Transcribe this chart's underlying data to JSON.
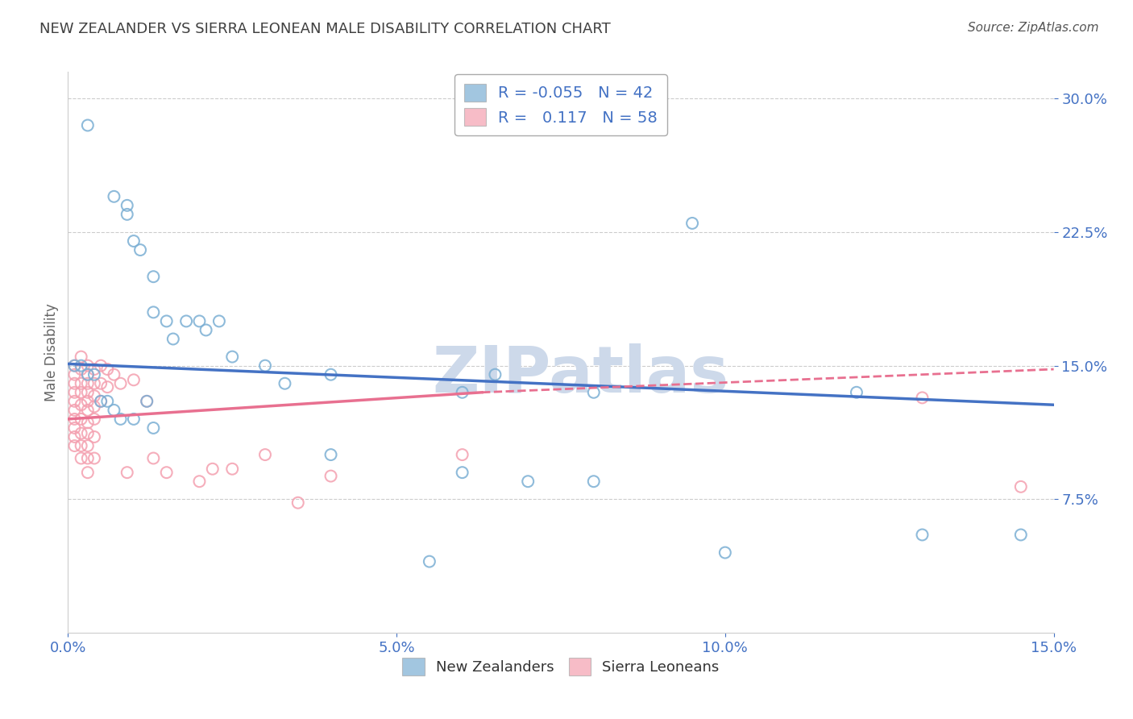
{
  "title": "NEW ZEALANDER VS SIERRA LEONEAN MALE DISABILITY CORRELATION CHART",
  "source": "Source: ZipAtlas.com",
  "xlabel": "",
  "ylabel": "Male Disability",
  "xlim": [
    0.0,
    0.15
  ],
  "ylim": [
    0.0,
    0.315
  ],
  "yticks": [
    0.075,
    0.15,
    0.225,
    0.3
  ],
  "ytick_labels": [
    "7.5%",
    "15.0%",
    "22.5%",
    "30.0%"
  ],
  "xticks": [
    0.0,
    0.05,
    0.1,
    0.15
  ],
  "xtick_labels": [
    "0.0%",
    "5.0%",
    "10.0%",
    "15.0%"
  ],
  "nz_color": "#7bafd4",
  "sl_color": "#f4a0b0",
  "nz_line_color": "#4472c4",
  "sl_line_color": "#e87090",
  "nz_R": -0.055,
  "nz_N": 42,
  "sl_R": 0.117,
  "sl_N": 58,
  "background_color": "#ffffff",
  "grid_color": "#cccccc",
  "axis_label_color": "#4472c4",
  "title_color": "#404040",
  "legend_R_color": "#4472c4",
  "nz_line_x0": 0.0,
  "nz_line_y0": 0.151,
  "nz_line_x1": 0.15,
  "nz_line_y1": 0.128,
  "sl_line_solid_x0": 0.0,
  "sl_line_solid_y0": 0.12,
  "sl_line_solid_x1": 0.063,
  "sl_line_solid_y1": 0.135,
  "sl_line_dash_x0": 0.063,
  "sl_line_dash_y0": 0.135,
  "sl_line_dash_x1": 0.15,
  "sl_line_dash_y1": 0.148,
  "nz_scatter_x": [
    0.003,
    0.007,
    0.009,
    0.009,
    0.01,
    0.011,
    0.013,
    0.013,
    0.015,
    0.016,
    0.018,
    0.02,
    0.021,
    0.023,
    0.025,
    0.03,
    0.033,
    0.04,
    0.06,
    0.065,
    0.08,
    0.095,
    0.12,
    0.13,
    0.145,
    0.001,
    0.002,
    0.003,
    0.004,
    0.005,
    0.006,
    0.007,
    0.008,
    0.01,
    0.012,
    0.013,
    0.04,
    0.06,
    0.07,
    0.08,
    0.1,
    0.055
  ],
  "nz_scatter_y": [
    0.285,
    0.245,
    0.24,
    0.235,
    0.22,
    0.215,
    0.2,
    0.18,
    0.175,
    0.165,
    0.175,
    0.175,
    0.17,
    0.175,
    0.155,
    0.15,
    0.14,
    0.145,
    0.135,
    0.145,
    0.135,
    0.23,
    0.135,
    0.055,
    0.055,
    0.15,
    0.15,
    0.145,
    0.145,
    0.13,
    0.13,
    0.125,
    0.12,
    0.12,
    0.13,
    0.115,
    0.1,
    0.09,
    0.085,
    0.085,
    0.045,
    0.04
  ],
  "sl_scatter_x": [
    0.001,
    0.001,
    0.001,
    0.001,
    0.001,
    0.001,
    0.001,
    0.001,
    0.001,
    0.001,
    0.002,
    0.002,
    0.002,
    0.002,
    0.002,
    0.002,
    0.002,
    0.002,
    0.002,
    0.003,
    0.003,
    0.003,
    0.003,
    0.003,
    0.003,
    0.003,
    0.003,
    0.003,
    0.003,
    0.003,
    0.004,
    0.004,
    0.004,
    0.004,
    0.004,
    0.004,
    0.004,
    0.005,
    0.005,
    0.005,
    0.006,
    0.006,
    0.007,
    0.008,
    0.009,
    0.01,
    0.012,
    0.013,
    0.015,
    0.02,
    0.022,
    0.025,
    0.03,
    0.035,
    0.04,
    0.06,
    0.13,
    0.145
  ],
  "sl_scatter_y": [
    0.15,
    0.145,
    0.14,
    0.135,
    0.13,
    0.125,
    0.12,
    0.115,
    0.11,
    0.105,
    0.155,
    0.148,
    0.14,
    0.135,
    0.128,
    0.12,
    0.112,
    0.105,
    0.098,
    0.15,
    0.145,
    0.14,
    0.135,
    0.13,
    0.125,
    0.118,
    0.112,
    0.105,
    0.098,
    0.09,
    0.148,
    0.14,
    0.133,
    0.127,
    0.12,
    0.11,
    0.098,
    0.15,
    0.14,
    0.13,
    0.148,
    0.138,
    0.145,
    0.14,
    0.09,
    0.142,
    0.13,
    0.098,
    0.09,
    0.085,
    0.092,
    0.092,
    0.1,
    0.073,
    0.088,
    0.1,
    0.132,
    0.082
  ],
  "watermark_text": "ZIPatlas",
  "watermark_color": "#cdd9ea",
  "marker_size": 100,
  "marker_linewidth": 1.5
}
